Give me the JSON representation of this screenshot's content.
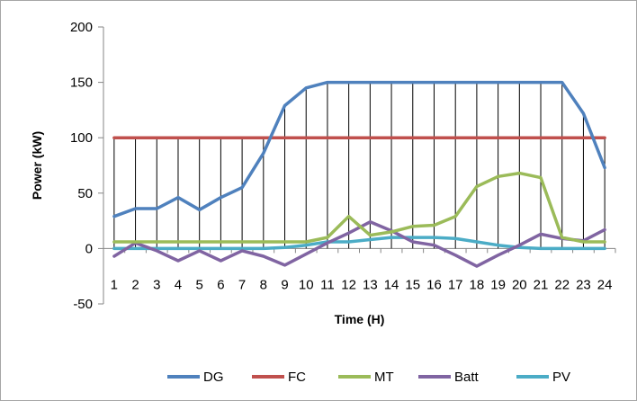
{
  "chart_data": {
    "type": "line",
    "title": "",
    "xlabel": "Time (H)",
    "ylabel": "Power (kW)",
    "ylim": [
      -50,
      200
    ],
    "yticks": [
      -50,
      0,
      50,
      100,
      150,
      200
    ],
    "categories": [
      "1",
      "2",
      "3",
      "4",
      "5",
      "6",
      "7",
      "8",
      "9",
      "10",
      "11",
      "12",
      "13",
      "14",
      "15",
      "16",
      "17",
      "18",
      "19",
      "20",
      "21",
      "22",
      "23",
      "24"
    ],
    "grid": false,
    "hour_dropline_color": "#000000",
    "legend_position": "bottom",
    "series": [
      {
        "name": "DG",
        "color": "#4f81bd",
        "values": [
          29,
          36,
          36,
          46,
          35,
          46,
          55,
          86,
          129,
          145,
          150,
          150,
          150,
          150,
          150,
          150,
          150,
          150,
          150,
          150,
          150,
          150,
          122,
          73
        ]
      },
      {
        "name": "FC",
        "color": "#c0504d",
        "values": [
          100,
          100,
          100,
          100,
          100,
          100,
          100,
          100,
          100,
          100,
          100,
          100,
          100,
          100,
          100,
          100,
          100,
          100,
          100,
          100,
          100,
          100,
          100,
          100
        ]
      },
      {
        "name": "MT",
        "color": "#9bbb59",
        "values": [
          6,
          6,
          6,
          6,
          6,
          6,
          6,
          6,
          6,
          6,
          10,
          29,
          12,
          15,
          20,
          21,
          29,
          56,
          65,
          68,
          64,
          10,
          6,
          6
        ]
      },
      {
        "name": "Batt",
        "color": "#8064a2",
        "values": [
          -7,
          5,
          -2,
          -11,
          -2,
          -11,
          -2,
          -7,
          -15,
          -5,
          5,
          14,
          24,
          16,
          6,
          3,
          -6,
          -16,
          -6,
          3,
          13,
          9,
          7,
          17
        ]
      },
      {
        "name": "PV",
        "color": "#4bacc6",
        "values": [
          0,
          0,
          0,
          0,
          0,
          0,
          0,
          0,
          1,
          3,
          6,
          6,
          8,
          10,
          10,
          10,
          9,
          6,
          3,
          1,
          0,
          0,
          0,
          0
        ]
      }
    ]
  }
}
